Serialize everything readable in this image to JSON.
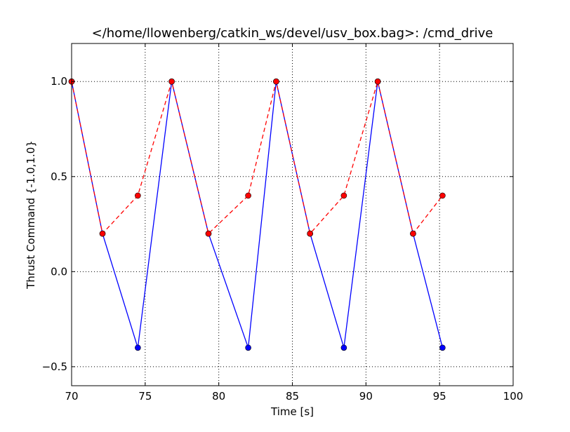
{
  "chart_data": {
    "type": "line",
    "title": "</home/llowenberg/catkin_ws/devel/usv_box.bag>: /cmd_drive",
    "xlabel": "Time [s]",
    "ylabel": "Thrust Command {-1.0,1.0}",
    "xlim": [
      70,
      100
    ],
    "ylim": [
      -0.6,
      1.2
    ],
    "xticks": [
      70,
      75,
      80,
      85,
      90,
      95,
      100
    ],
    "xtick_labels": [
      "70",
      "75",
      "80",
      "85",
      "90",
      "95",
      "100"
    ],
    "yticks": [
      -0.5,
      0.0,
      0.5,
      1.0
    ],
    "ytick_labels": [
      "−0.5",
      "0.0",
      "0.5",
      "1.0"
    ],
    "grid": true,
    "series": [
      {
        "color": "#0000ff",
        "line_style": "solid",
        "marker": "circle",
        "marker_color": "#0000ff",
        "x": [
          70.0,
          72.1,
          74.5,
          76.8,
          79.3,
          82.0,
          83.9,
          86.2,
          88.5,
          90.8,
          93.2,
          95.2
        ],
        "y": [
          1.0,
          0.2,
          -0.4,
          1.0,
          0.2,
          -0.4,
          1.0,
          0.2,
          -0.4,
          1.0,
          0.2,
          -0.4
        ]
      },
      {
        "color": "#ff0000",
        "line_style": "dashed",
        "marker": "circle",
        "marker_color": "#ff0000",
        "x": [
          70.0,
          72.1,
          74.5,
          76.8,
          79.3,
          82.0,
          83.9,
          86.2,
          88.5,
          90.8,
          93.2,
          95.2
        ],
        "y": [
          1.0,
          0.2,
          0.4,
          1.0,
          0.2,
          0.4,
          1.0,
          0.2,
          0.4,
          1.0,
          0.2,
          0.4
        ]
      }
    ]
  }
}
